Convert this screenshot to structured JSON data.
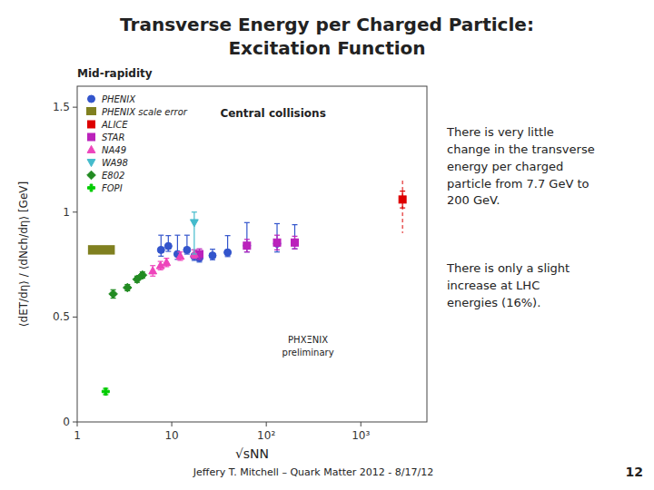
{
  "chart_data": {
    "type": "scatter",
    "title": "Transverse Energy per Charged Particle:",
    "subtitle": "Excitation Function",
    "x_label": "√sNN",
    "y_label": "⟨dET/dη⟩ / ⟨dNch/dη⟩ [GeV]",
    "annotations": [
      "Mid-rapidity",
      "Central collisions",
      "PHXΞNIX\npreliminary",
      "There is very little\nchange in the transverse\nenergy per charged\nparticle from 7.7 GeV to\n200 GeV.",
      "There is only a slight\nincrease at LHC\nenergies (16%).",
      "Jeffery T. Mitchell – Quark Matter 2012 - 8/17/12",
      "12"
    ],
    "log": "x",
    "grid": false,
    "legend": "upper left",
    "xlim": [
      1.0,
      5000.0
    ],
    "xticks": [
      1,
      10,
      {
        "value": 100,
        "label": "10²"
      },
      {
        "value": 1000,
        "label": "10³"
      }
    ],
    "ylim": [
      0.0,
      1.6
    ],
    "yticks": [
      0,
      0.5,
      1,
      1.5
    ],
    "series": [
      {
        "name": "PHENIX",
        "color": "#3355cc",
        "marker": "circle",
        "x": [
          7.7,
          9.2,
          11.5,
          14.5,
          17.3,
          19.6,
          27.0,
          39.0,
          62.4,
          130.0,
          200.0
        ],
        "values": [
          0.82,
          0.838,
          0.8,
          0.82,
          0.79,
          0.782,
          0.793,
          0.808,
          0.84,
          0.85,
          0.855
        ],
        "errors_low": [
          0.03,
          0.025,
          0.025,
          0.02,
          0.02,
          0.02,
          0.02,
          0.02,
          0.03,
          0.04,
          0.03
        ],
        "errors_high": [
          0.07,
          0.05,
          0.09,
          0.07,
          0.03,
          0.03,
          0.03,
          0.08,
          0.11,
          0.095,
          0.085
        ]
      },
      {
        "name": "PHENIX scale error",
        "type": "band",
        "color": "#808020",
        "x_low": [
          1.3
        ],
        "x_high": [
          2.5
        ],
        "values": [
          0.82
        ],
        "height": [
          0.045
        ]
      },
      {
        "name": "ALICE",
        "color": "#dd0000",
        "marker": "square",
        "x": [
          2760.0
        ],
        "values": [
          1.06
        ],
        "errors": [
          0.04
        ],
        "dash_from": [
          1.15
        ],
        "dash_to": [
          0.9
        ]
      },
      {
        "name": "STAR",
        "color": "#bb22bb",
        "marker": "square",
        "x": [
          19.6,
          62.4,
          130.0,
          200.0
        ],
        "values": [
          0.8,
          0.84,
          0.855,
          0.855
        ],
        "errors": [
          0.025,
          0.03,
          0.035,
          0.03
        ]
      },
      {
        "name": "NA49",
        "color": "#ee44bb",
        "marker": "triangle-up",
        "x": [
          6.3,
          7.6,
          8.8,
          12.3,
          17.3
        ],
        "values": [
          0.72,
          0.745,
          0.76,
          0.79,
          0.8
        ],
        "errors": [
          0.025,
          0.02,
          0.02,
          0.02,
          0.02
        ]
      },
      {
        "name": "WA98",
        "color": "#44bbcc",
        "marker": "triangle-down",
        "x": [
          17.3
        ],
        "values": [
          0.95
        ],
        "errors_low": [
          0.15
        ],
        "errors_high": [
          0.05
        ]
      },
      {
        "name": "E802",
        "color": "#228B22",
        "marker": "diamond",
        "x": [
          2.4,
          3.4,
          4.3,
          4.9
        ],
        "values": [
          0.61,
          0.64,
          0.68,
          0.7
        ],
        "errors": [
          0.02,
          0.015,
          0.015,
          0.015
        ]
      },
      {
        "name": "FOPI",
        "color": "#00cc00",
        "marker": "plus",
        "x": [
          2.0
        ],
        "values": [
          0.145
        ],
        "errors": [
          0.015
        ]
      }
    ]
  }
}
